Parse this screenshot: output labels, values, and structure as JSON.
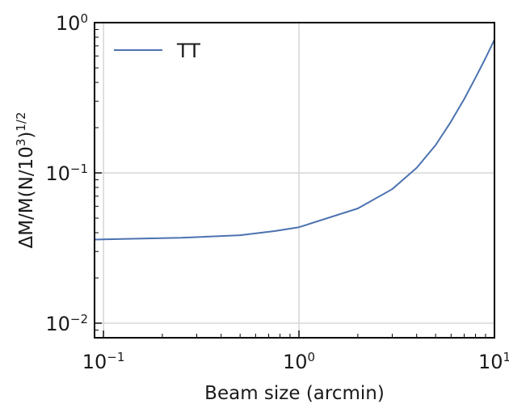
{
  "chart_data": {
    "type": "line",
    "xscale": "log",
    "yscale": "log",
    "xlim": [
      0.09,
      10
    ],
    "ylim": [
      0.008,
      1
    ],
    "xlabel": "Beam size (arcmin)",
    "ylabel_parts": [
      "ΔM/M(N/10",
      "3",
      ")",
      "1/2"
    ],
    "xticks": [
      {
        "base": "10",
        "exp": "−1",
        "value": 0.1
      },
      {
        "base": "10",
        "exp": "0",
        "value": 1
      },
      {
        "base": "10",
        "exp": "1",
        "value": 10
      }
    ],
    "yticks": [
      {
        "base": "10",
        "exp": "−2",
        "value": 0.01
      },
      {
        "base": "10",
        "exp": "−1",
        "value": 0.1
      },
      {
        "base": "10",
        "exp": "0",
        "value": 1
      }
    ],
    "grid": true,
    "legend_position": "top-left",
    "series": [
      {
        "name": "TT",
        "color": "#4c72b0",
        "x": [
          0.09,
          0.25,
          0.5,
          0.75,
          1,
          2,
          3,
          4,
          5,
          6,
          7,
          8,
          9,
          10
        ],
        "y": [
          0.036,
          0.037,
          0.0385,
          0.041,
          0.0435,
          0.058,
          0.078,
          0.108,
          0.153,
          0.22,
          0.31,
          0.43,
          0.58,
          0.77
        ]
      }
    ]
  }
}
